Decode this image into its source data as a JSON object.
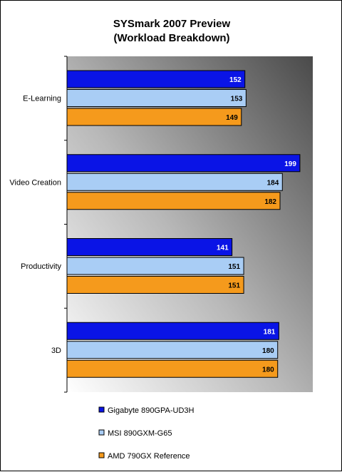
{
  "chart_data": {
    "type": "bar",
    "orientation": "horizontal",
    "title": "SYSmark 2007 Preview",
    "subtitle": "(Workload Breakdown)",
    "categories": [
      "E-Learning",
      "Video Creation",
      "Productivity",
      "3D"
    ],
    "series": [
      {
        "name": "Gigabyte 890GPA-UD3H",
        "values": [
          152,
          199,
          141,
          181
        ],
        "color": "#0a14e6",
        "label_color": "#ffffff"
      },
      {
        "name": "MSI 890GXM-G65",
        "values": [
          153,
          184,
          151,
          180
        ],
        "color": "#a9cdf5",
        "label_color": "#000000"
      },
      {
        "name": "AMD 790GX Reference",
        "values": [
          149,
          182,
          151,
          180
        ],
        "color": "#f59a1c",
        "label_color": "#000000"
      }
    ],
    "xlim": [
      0,
      210
    ],
    "grid": false,
    "legend_position": "bottom-left"
  }
}
